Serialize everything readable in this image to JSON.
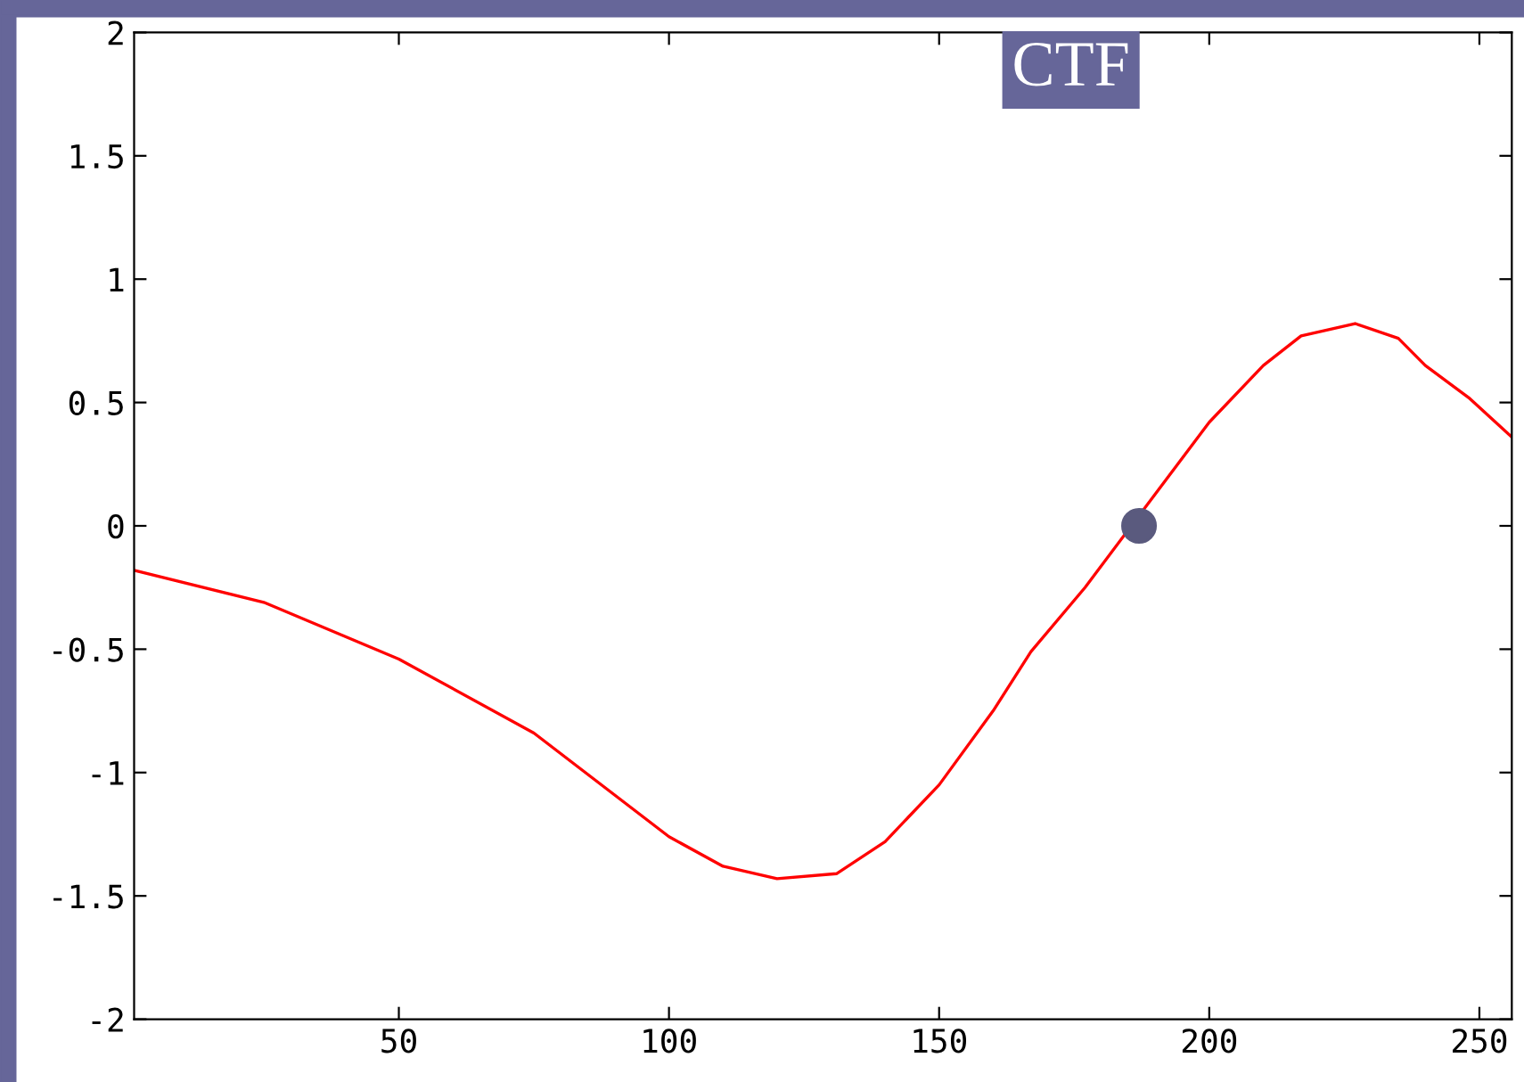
{
  "chart_data": {
    "type": "line",
    "title": "CTF",
    "xlim": [
      1,
      256
    ],
    "ylim": [
      -2,
      2
    ],
    "xticks": [
      50,
      100,
      150,
      200,
      250
    ],
    "yticks": [
      -2,
      -1.5,
      -1,
      -0.5,
      0,
      0.5,
      1,
      1.5,
      2
    ],
    "grid": false,
    "legend": false,
    "series": [
      {
        "color": "#ff0000",
        "marker": "none",
        "x": [
          1,
          25,
          50,
          75,
          100,
          110,
          120,
          131,
          140,
          150,
          160,
          167,
          177,
          200,
          210,
          217,
          227,
          235,
          240,
          248,
          256
        ],
        "values": [
          -0.18,
          -0.31,
          -0.54,
          -0.84,
          -1.26,
          -1.38,
          -1.43,
          -1.41,
          -1.28,
          -1.05,
          -0.75,
          -0.51,
          -0.25,
          0.42,
          0.65,
          0.77,
          0.82,
          0.76,
          0.65,
          0.52,
          0.36
        ]
      },
      {
        "type": "scatter",
        "color": "#5a5a7e",
        "marker": "circle",
        "x": [
          187
        ],
        "values": [
          0
        ]
      }
    ]
  }
}
